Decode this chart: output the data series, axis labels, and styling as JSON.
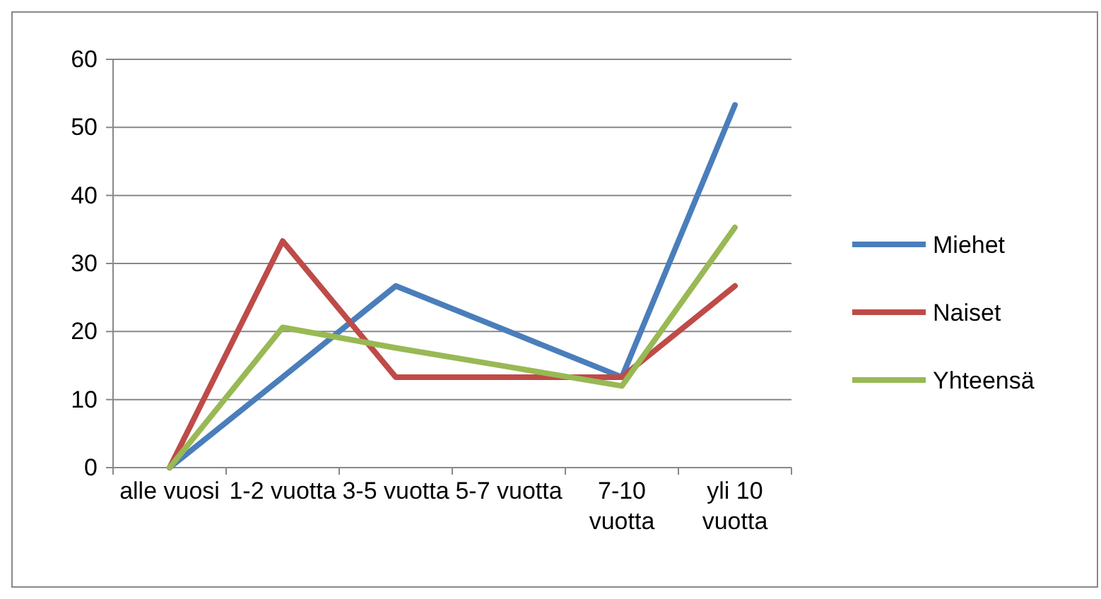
{
  "chart_data": {
    "type": "line",
    "categories": [
      "alle vuosi",
      "1-2 vuotta",
      "3-5 vuotta",
      "5-7 vuotta",
      "7-10 vuotta",
      "yli 10 vuotta"
    ],
    "series": [
      {
        "name": "Miehet",
        "color": "#4a7ebb",
        "values": [
          0,
          13.3,
          26.7,
          20,
          13.3,
          53.3
        ]
      },
      {
        "name": "Naiset",
        "color": "#be4b48",
        "values": [
          0,
          33.3,
          13.3,
          13.3,
          13.3,
          26.7
        ]
      },
      {
        "name": "Yhteensä",
        "color": "#98b954",
        "values": [
          0,
          20.6,
          17.6,
          14.8,
          12,
          35.3
        ]
      }
    ],
    "ylim": [
      0,
      60
    ],
    "yticks": [
      0,
      10,
      20,
      30,
      40,
      50,
      60
    ],
    "grid": "y",
    "legend": "right",
    "marker": "none",
    "line_style": "solid"
  }
}
